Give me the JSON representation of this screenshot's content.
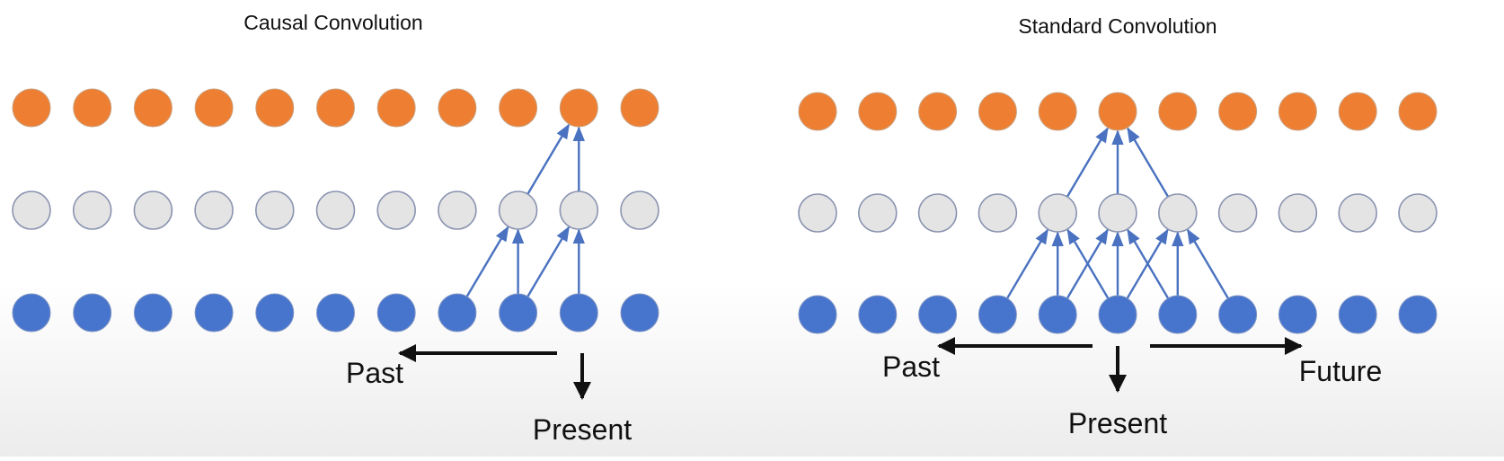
{
  "colors": {
    "output_node": "#ee7f32",
    "hidden_node": "#e4e4e4",
    "input_node": "#4774cc",
    "node_stroke": "#8a93b0",
    "connection": "#4a72c0",
    "axis_arrow": "#111111",
    "text": "#111111"
  },
  "diagrams": [
    {
      "id": "causal",
      "title": "Causal Convolution",
      "labels": {
        "past": "Past",
        "present": "Present",
        "future": ""
      }
    },
    {
      "id": "standard",
      "title": "Standard Convolution",
      "labels": {
        "past": "Past",
        "present": "Present",
        "future": "Future"
      }
    }
  ]
}
